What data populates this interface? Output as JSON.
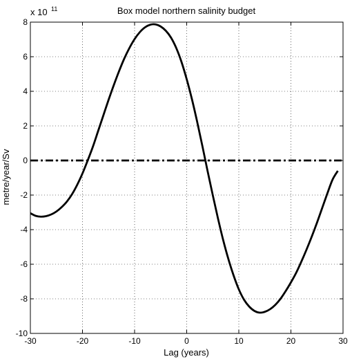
{
  "chart_data": {
    "type": "line",
    "title": "Box model northern salinity budget",
    "xlabel": "Lag (years)",
    "ylabel": "metre/year/Sv",
    "y_multiplier_base": "x 10",
    "y_multiplier_exponent": "11",
    "xlim": [
      -30,
      30
    ],
    "ylim": [
      -10,
      8
    ],
    "x_ticks": [
      -30,
      -20,
      -10,
      0,
      10,
      20,
      30
    ],
    "y_ticks": [
      -10,
      -8,
      -6,
      -4,
      -2,
      0,
      2,
      4,
      6,
      8
    ],
    "grid": true,
    "series": [
      {
        "style": "solid",
        "color": "#000000",
        "x": [
          -30,
          -29,
          -28,
          -27,
          -26,
          -25,
          -24,
          -23,
          -22,
          -21,
          -20,
          -19,
          -18,
          -17,
          -16,
          -15,
          -14,
          -13,
          -12,
          -11,
          -10,
          -9,
          -8,
          -7,
          -6,
          -5,
          -4,
          -3,
          -2,
          -1,
          0,
          1,
          2,
          3,
          4,
          5,
          6,
          7,
          8,
          9,
          10,
          11,
          12,
          13,
          14,
          15,
          16,
          17,
          18,
          19,
          20,
          21,
          22,
          23,
          24,
          25,
          26,
          27,
          28,
          29
        ],
        "y": [
          -3.05,
          -3.2,
          -3.25,
          -3.22,
          -3.12,
          -2.95,
          -2.7,
          -2.38,
          -1.95,
          -1.4,
          -0.75,
          0.0,
          0.8,
          1.7,
          2.6,
          3.5,
          4.35,
          5.15,
          5.88,
          6.5,
          7.02,
          7.42,
          7.7,
          7.85,
          7.87,
          7.75,
          7.5,
          7.1,
          6.5,
          5.7,
          4.7,
          3.55,
          2.25,
          0.85,
          -0.6,
          -2.0,
          -3.35,
          -4.6,
          -5.7,
          -6.65,
          -7.45,
          -8.05,
          -8.45,
          -8.7,
          -8.8,
          -8.75,
          -8.6,
          -8.35,
          -8.0,
          -7.55,
          -7.05,
          -6.5,
          -5.85,
          -5.15,
          -4.4,
          -3.6,
          -2.75,
          -1.9,
          -1.1,
          -0.6
        ]
      },
      {
        "style": "dash-dot",
        "color": "#000000",
        "x": [
          -30,
          30
        ],
        "y": [
          0,
          0
        ]
      }
    ]
  }
}
